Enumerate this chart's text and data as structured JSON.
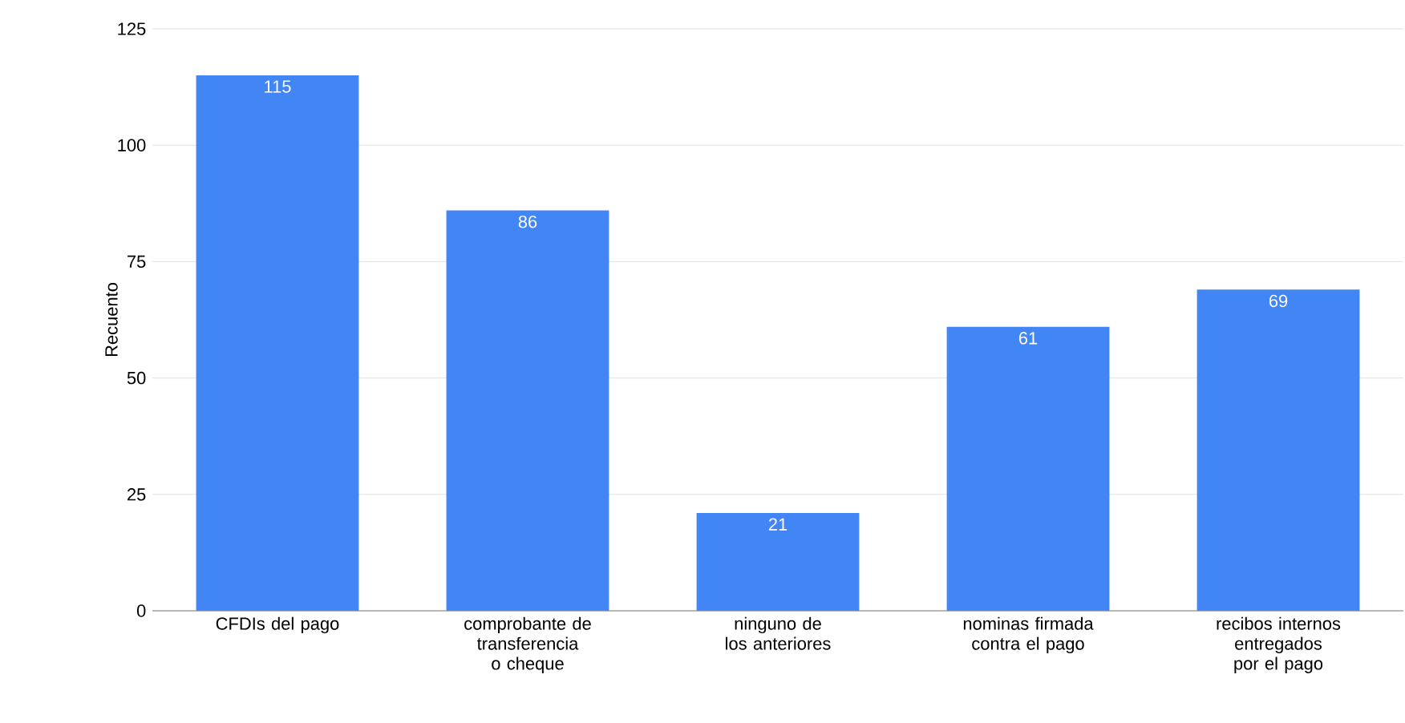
{
  "chart_data": {
    "type": "bar",
    "ylabel": "Recuento",
    "categories": [
      "CFDIs del pago",
      "comprobante de transferencia o cheque",
      "ninguno de los anteriores",
      "nominas firmada contra el pago",
      "recibos internos entregados  por el pago"
    ],
    "values": [
      115,
      86,
      21,
      61,
      69
    ],
    "color": "#4285f4",
    "ylim": [
      0,
      125
    ],
    "yticks": [
      0,
      25,
      50,
      75,
      100,
      125
    ],
    "grid": "y",
    "data_labels": true
  }
}
